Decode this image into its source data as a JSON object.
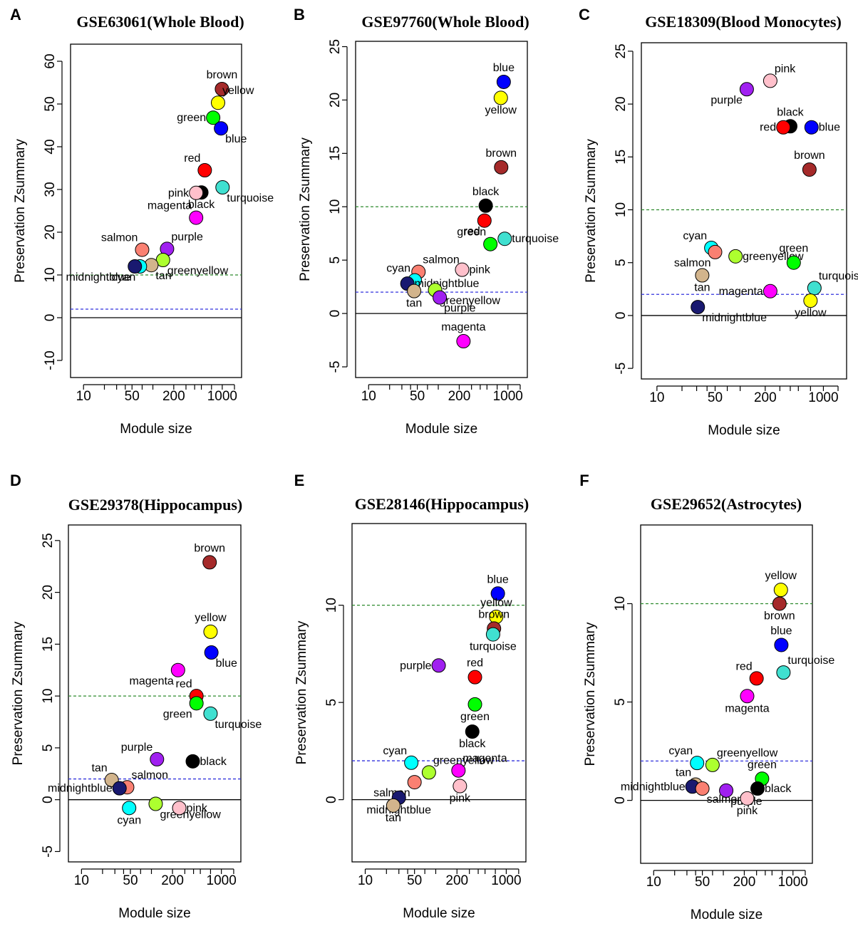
{
  "figure": {
    "xlabel": "Module size",
    "ylabel": "Preservation Zsummary"
  },
  "colors": {
    "axis": "#000000",
    "upper_threshold": "#2e8b2e",
    "lower_threshold": "#3333dd",
    "module": {
      "brown": "#a52a2a",
      "yellow": "#ffff00",
      "green": "#00ff00",
      "blue": "#0000ff",
      "red": "#ff0000",
      "turquoise": "#40e0d0",
      "pink": "#ffc0cb",
      "black": "#000000",
      "magenta": "#ff00ff",
      "salmon": "#fa8072",
      "purple": "#a020f0",
      "greenyellow": "#adff2f",
      "tan": "#d2b48c",
      "midnightblue": "#191970",
      "cyan": "#00ffff"
    }
  },
  "chart_data": [
    {
      "letter": "A",
      "type": "scatter",
      "title": "GSE63061(Whole Blood)",
      "xscale": "log",
      "xlim": [
        6.5,
        1900
      ],
      "xticks": [
        10,
        50,
        200,
        1000
      ],
      "ylim": [
        -14,
        64
      ],
      "yticks": [
        -10,
        0,
        10,
        20,
        30,
        40,
        50,
        60
      ],
      "thresholds": [
        2,
        10
      ],
      "points": [
        {
          "name": "brown",
          "x": 990,
          "y": 53.5,
          "label": "brown",
          "label_pos": "above"
        },
        {
          "name": "yellow",
          "x": 870,
          "y": 50.3,
          "label": "yellow",
          "label_pos": "above-right"
        },
        {
          "name": "green",
          "x": 740,
          "y": 46.8,
          "label": "green",
          "label_pos": "left"
        },
        {
          "name": "blue",
          "x": 960,
          "y": 44.3,
          "label": "blue",
          "label_pos": "below-right"
        },
        {
          "name": "red",
          "x": 560,
          "y": 34.5,
          "label": "red",
          "label_pos": "above-left"
        },
        {
          "name": "turquoise",
          "x": 1010,
          "y": 30.5,
          "label": "turquoise",
          "label_pos": "below-right"
        },
        {
          "name": "black",
          "x": 500,
          "y": 29.3,
          "label": "black",
          "label_pos": "below"
        },
        {
          "name": "pink",
          "x": 420,
          "y": 29.2,
          "label": "pink",
          "label_pos": "left"
        },
        {
          "name": "magenta",
          "x": 420,
          "y": 23.4,
          "label": "magenta",
          "label_pos": "above-left"
        },
        {
          "name": "salmon",
          "x": 70,
          "y": 15.9,
          "label": "salmon",
          "label_pos": "above-left"
        },
        {
          "name": "purple",
          "x": 160,
          "y": 16.1,
          "label": "purple",
          "label_pos": "above-right"
        },
        {
          "name": "greenyellow",
          "x": 140,
          "y": 13.5,
          "label": "greenyellow",
          "label_pos": "below-right"
        },
        {
          "name": "tan",
          "x": 95,
          "y": 12.3,
          "label": "tan",
          "label_pos": "below-right"
        },
        {
          "name": "cyan",
          "x": 65,
          "y": 12.0,
          "label": "cyan",
          "label_pos": "below-left"
        },
        {
          "name": "midnightblue",
          "x": 55,
          "y": 12.0,
          "label": "midnightblue",
          "label_pos": "below-left"
        }
      ]
    },
    {
      "letter": "B",
      "type": "scatter",
      "title": "GSE97760(Whole Blood)",
      "xscale": "log",
      "xlim": [
        6.5,
        1900
      ],
      "xticks": [
        10,
        50,
        200,
        1000
      ],
      "ylim": [
        -6,
        25.5
      ],
      "yticks": [
        -5,
        0,
        5,
        10,
        15,
        20,
        25
      ],
      "thresholds": [
        2,
        10
      ],
      "points": [
        {
          "name": "blue",
          "x": 870,
          "y": 21.7,
          "label": "blue",
          "label_pos": "above"
        },
        {
          "name": "yellow",
          "x": 790,
          "y": 20.2,
          "label": "yellow",
          "label_pos": "below"
        },
        {
          "name": "brown",
          "x": 800,
          "y": 13.7,
          "label": "brown",
          "label_pos": "above"
        },
        {
          "name": "black",
          "x": 480,
          "y": 10.1,
          "label": "black",
          "label_pos": "above"
        },
        {
          "name": "red",
          "x": 460,
          "y": 8.7,
          "label": "red",
          "label_pos": "below-left"
        },
        {
          "name": "turquoise",
          "x": 900,
          "y": 7.0,
          "label": "turquoise",
          "label_pos": "right"
        },
        {
          "name": "green",
          "x": 560,
          "y": 6.5,
          "label": "green",
          "label_pos": "above-left"
        },
        {
          "name": "pink",
          "x": 220,
          "y": 4.1,
          "label": "pink",
          "label_pos": "right"
        },
        {
          "name": "salmon",
          "x": 52,
          "y": 3.9,
          "label": "salmon",
          "label_pos": "above-right"
        },
        {
          "name": "cyan",
          "x": 46,
          "y": 3.1,
          "label": "cyan",
          "label_pos": "above-left"
        },
        {
          "name": "midnightblue",
          "x": 36,
          "y": 2.8,
          "label": "midnightblue",
          "label_pos": "right"
        },
        {
          "name": "tan",
          "x": 45,
          "y": 2.1,
          "label": "tan",
          "label_pos": "below"
        },
        {
          "name": "greenyellow",
          "x": 90,
          "y": 2.2,
          "label": "greenyellow",
          "label_pos": "below-right"
        },
        {
          "name": "purple",
          "x": 105,
          "y": 1.5,
          "label": "purple",
          "label_pos": "below-right"
        },
        {
          "name": "magenta",
          "x": 230,
          "y": -2.6,
          "label": "magenta",
          "label_pos": "above"
        }
      ]
    },
    {
      "letter": "C",
      "type": "scatter",
      "title": "GSE18309(Blood Monocytes)",
      "xscale": "log",
      "xlim": [
        6.5,
        1900
      ],
      "xticks": [
        10,
        50,
        200,
        1000
      ],
      "ylim": [
        -6,
        25.8
      ],
      "yticks": [
        -5,
        0,
        5,
        10,
        15,
        20,
        25
      ],
      "thresholds": [
        2,
        10
      ],
      "points": [
        {
          "name": "pink",
          "x": 230,
          "y": 22.2,
          "label": "pink",
          "label_pos": "above-right"
        },
        {
          "name": "purple",
          "x": 120,
          "y": 21.4,
          "label": "purple",
          "label_pos": "below-left"
        },
        {
          "name": "black",
          "x": 400,
          "y": 17.9,
          "label": "black",
          "label_pos": "above"
        },
        {
          "name": "red",
          "x": 330,
          "y": 17.8,
          "label": "red",
          "label_pos": "left"
        },
        {
          "name": "blue",
          "x": 720,
          "y": 17.8,
          "label": "blue",
          "label_pos": "right"
        },
        {
          "name": "brown",
          "x": 680,
          "y": 13.8,
          "label": "brown",
          "label_pos": "above"
        },
        {
          "name": "cyan",
          "x": 45,
          "y": 6.4,
          "label": "cyan",
          "label_pos": "above-left"
        },
        {
          "name": "salmon",
          "x": 50,
          "y": 6.0,
          "label": "salmon",
          "label_pos": "below-left"
        },
        {
          "name": "greenyellow",
          "x": 88,
          "y": 5.6,
          "label": "greenyellow",
          "label_pos": "right"
        },
        {
          "name": "green",
          "x": 440,
          "y": 5.0,
          "label": "green",
          "label_pos": "above"
        },
        {
          "name": "tan",
          "x": 35,
          "y": 3.8,
          "label": "tan",
          "label_pos": "below"
        },
        {
          "name": "turquoise",
          "x": 780,
          "y": 2.6,
          "label": "turquoise",
          "label_pos": "above-right"
        },
        {
          "name": "magenta",
          "x": 230,
          "y": 2.3,
          "label": "magenta",
          "label_pos": "left"
        },
        {
          "name": "yellow",
          "x": 700,
          "y": 1.4,
          "label": "yellow",
          "label_pos": "below"
        },
        {
          "name": "midnightblue",
          "x": 31,
          "y": 0.8,
          "label": "midnightblue",
          "label_pos": "below-right"
        }
      ]
    },
    {
      "letter": "D",
      "type": "scatter",
      "title": "GSE29378(Hippocampus)",
      "xscale": "log",
      "xlim": [
        6.5,
        1900
      ],
      "xticks": [
        10,
        50,
        200,
        1000
      ],
      "ylim": [
        -6,
        26.5
      ],
      "yticks": [
        -5,
        0,
        5,
        10,
        15,
        20,
        25
      ],
      "thresholds": [
        2,
        10
      ],
      "points": [
        {
          "name": "brown",
          "x": 680,
          "y": 22.9,
          "label": "brown",
          "label_pos": "above"
        },
        {
          "name": "yellow",
          "x": 700,
          "y": 16.2,
          "label": "yellow",
          "label_pos": "above"
        },
        {
          "name": "blue",
          "x": 720,
          "y": 14.2,
          "label": "blue",
          "label_pos": "below-right"
        },
        {
          "name": "magenta",
          "x": 240,
          "y": 12.5,
          "label": "magenta",
          "label_pos": "below-left"
        },
        {
          "name": "red",
          "x": 440,
          "y": 10.0,
          "label": "red",
          "label_pos": "above-left"
        },
        {
          "name": "green",
          "x": 440,
          "y": 9.3,
          "label": "green",
          "label_pos": "below-left"
        },
        {
          "name": "turquoise",
          "x": 700,
          "y": 8.3,
          "label": "turquoise",
          "label_pos": "below-right"
        },
        {
          "name": "purple",
          "x": 120,
          "y": 3.9,
          "label": "purple",
          "label_pos": "above-left"
        },
        {
          "name": "black",
          "x": 390,
          "y": 3.7,
          "label": "black",
          "label_pos": "right"
        },
        {
          "name": "tan",
          "x": 27,
          "y": 1.9,
          "label": "tan",
          "label_pos": "above-left"
        },
        {
          "name": "salmon",
          "x": 45,
          "y": 1.2,
          "label": "salmon",
          "label_pos": "above-right"
        },
        {
          "name": "midnightblue",
          "x": 35,
          "y": 1.1,
          "label": "midnightblue",
          "label_pos": "left"
        },
        {
          "name": "greenyellow",
          "x": 115,
          "y": -0.4,
          "label": "greenyellow",
          "label_pos": "below-right"
        },
        {
          "name": "cyan",
          "x": 48,
          "y": -0.8,
          "label": "cyan",
          "label_pos": "below"
        },
        {
          "name": "pink",
          "x": 250,
          "y": -0.8,
          "label": "pink",
          "label_pos": "right"
        }
      ]
    },
    {
      "letter": "E",
      "type": "scatter",
      "title": "GSE28146(Hippocampus)",
      "xscale": "log",
      "xlim": [
        6.5,
        1900
      ],
      "xticks": [
        10,
        50,
        200,
        1000
      ],
      "ylim": [
        -3.2,
        14.2
      ],
      "yticks": [
        0,
        5,
        10
      ],
      "thresholds": [
        2,
        10
      ],
      "points": [
        {
          "name": "blue",
          "x": 760,
          "y": 10.6,
          "label": "blue",
          "label_pos": "above"
        },
        {
          "name": "yellow",
          "x": 720,
          "y": 9.4,
          "label": "yellow",
          "label_pos": "above"
        },
        {
          "name": "brown",
          "x": 670,
          "y": 8.8,
          "label": "brown",
          "label_pos": "above"
        },
        {
          "name": "turquoise",
          "x": 650,
          "y": 8.5,
          "label": "turquoise",
          "label_pos": "below"
        },
        {
          "name": "purple",
          "x": 110,
          "y": 6.9,
          "label": "purple",
          "label_pos": "left"
        },
        {
          "name": "red",
          "x": 360,
          "y": 6.3,
          "label": "red",
          "label_pos": "above"
        },
        {
          "name": "green",
          "x": 360,
          "y": 4.9,
          "label": "green",
          "label_pos": "below"
        },
        {
          "name": "black",
          "x": 330,
          "y": 3.5,
          "label": "black",
          "label_pos": "below"
        },
        {
          "name": "cyan",
          "x": 45,
          "y": 1.9,
          "label": "cyan",
          "label_pos": "above-left"
        },
        {
          "name": "magenta",
          "x": 210,
          "y": 1.5,
          "label": "magenta",
          "label_pos": "above-right"
        },
        {
          "name": "greenyellow",
          "x": 80,
          "y": 1.4,
          "label": "greenyellow",
          "label_pos": "above-right"
        },
        {
          "name": "salmon",
          "x": 50,
          "y": 0.9,
          "label": "salmon",
          "label_pos": "below-left"
        },
        {
          "name": "pink",
          "x": 220,
          "y": 0.7,
          "label": "pink",
          "label_pos": "below"
        },
        {
          "name": "midnightblue",
          "x": 30,
          "y": 0.1,
          "label": "midnightblue",
          "label_pos": "below"
        },
        {
          "name": "tan",
          "x": 25,
          "y": -0.3,
          "label": "tan",
          "label_pos": "below"
        }
      ]
    },
    {
      "letter": "F",
      "type": "scatter",
      "title": "GSE29652(Astrocytes)",
      "xscale": "log",
      "xlim": [
        6.5,
        1900
      ],
      "xticks": [
        10,
        50,
        200,
        1000
      ],
      "ylim": [
        -3.2,
        14.0
      ],
      "yticks": [
        0,
        5,
        10
      ],
      "thresholds": [
        2,
        10
      ],
      "points": [
        {
          "name": "yellow",
          "x": 670,
          "y": 10.7,
          "label": "yellow",
          "label_pos": "above"
        },
        {
          "name": "brown",
          "x": 640,
          "y": 10.0,
          "label": "brown",
          "label_pos": "below"
        },
        {
          "name": "blue",
          "x": 680,
          "y": 7.9,
          "label": "blue",
          "label_pos": "above"
        },
        {
          "name": "red",
          "x": 300,
          "y": 6.2,
          "label": "red",
          "label_pos": "above-left"
        },
        {
          "name": "turquoise",
          "x": 730,
          "y": 6.5,
          "label": "turquoise",
          "label_pos": "above-right"
        },
        {
          "name": "magenta",
          "x": 220,
          "y": 5.3,
          "label": "magenta",
          "label_pos": "below"
        },
        {
          "name": "cyan",
          "x": 42,
          "y": 1.9,
          "label": "cyan",
          "label_pos": "above-left"
        },
        {
          "name": "greenyellow",
          "x": 70,
          "y": 1.8,
          "label": "greenyellow",
          "label_pos": "above-right"
        },
        {
          "name": "green",
          "x": 360,
          "y": 1.1,
          "label": "green",
          "label_pos": "above"
        },
        {
          "name": "tan",
          "x": 40,
          "y": 0.8,
          "label": "tan",
          "label_pos": "above-left"
        },
        {
          "name": "midnightblue",
          "x": 36,
          "y": 0.7,
          "label": "midnightblue",
          "label_pos": "left"
        },
        {
          "name": "salmon",
          "x": 50,
          "y": 0.6,
          "label": "salmon",
          "label_pos": "below-right"
        },
        {
          "name": "purple",
          "x": 110,
          "y": 0.5,
          "label": "purple",
          "label_pos": "below-right"
        },
        {
          "name": "black",
          "x": 310,
          "y": 0.6,
          "label": "black",
          "label_pos": "right"
        },
        {
          "name": "pink",
          "x": 220,
          "y": 0.1,
          "label": "pink",
          "label_pos": "below"
        }
      ]
    }
  ]
}
